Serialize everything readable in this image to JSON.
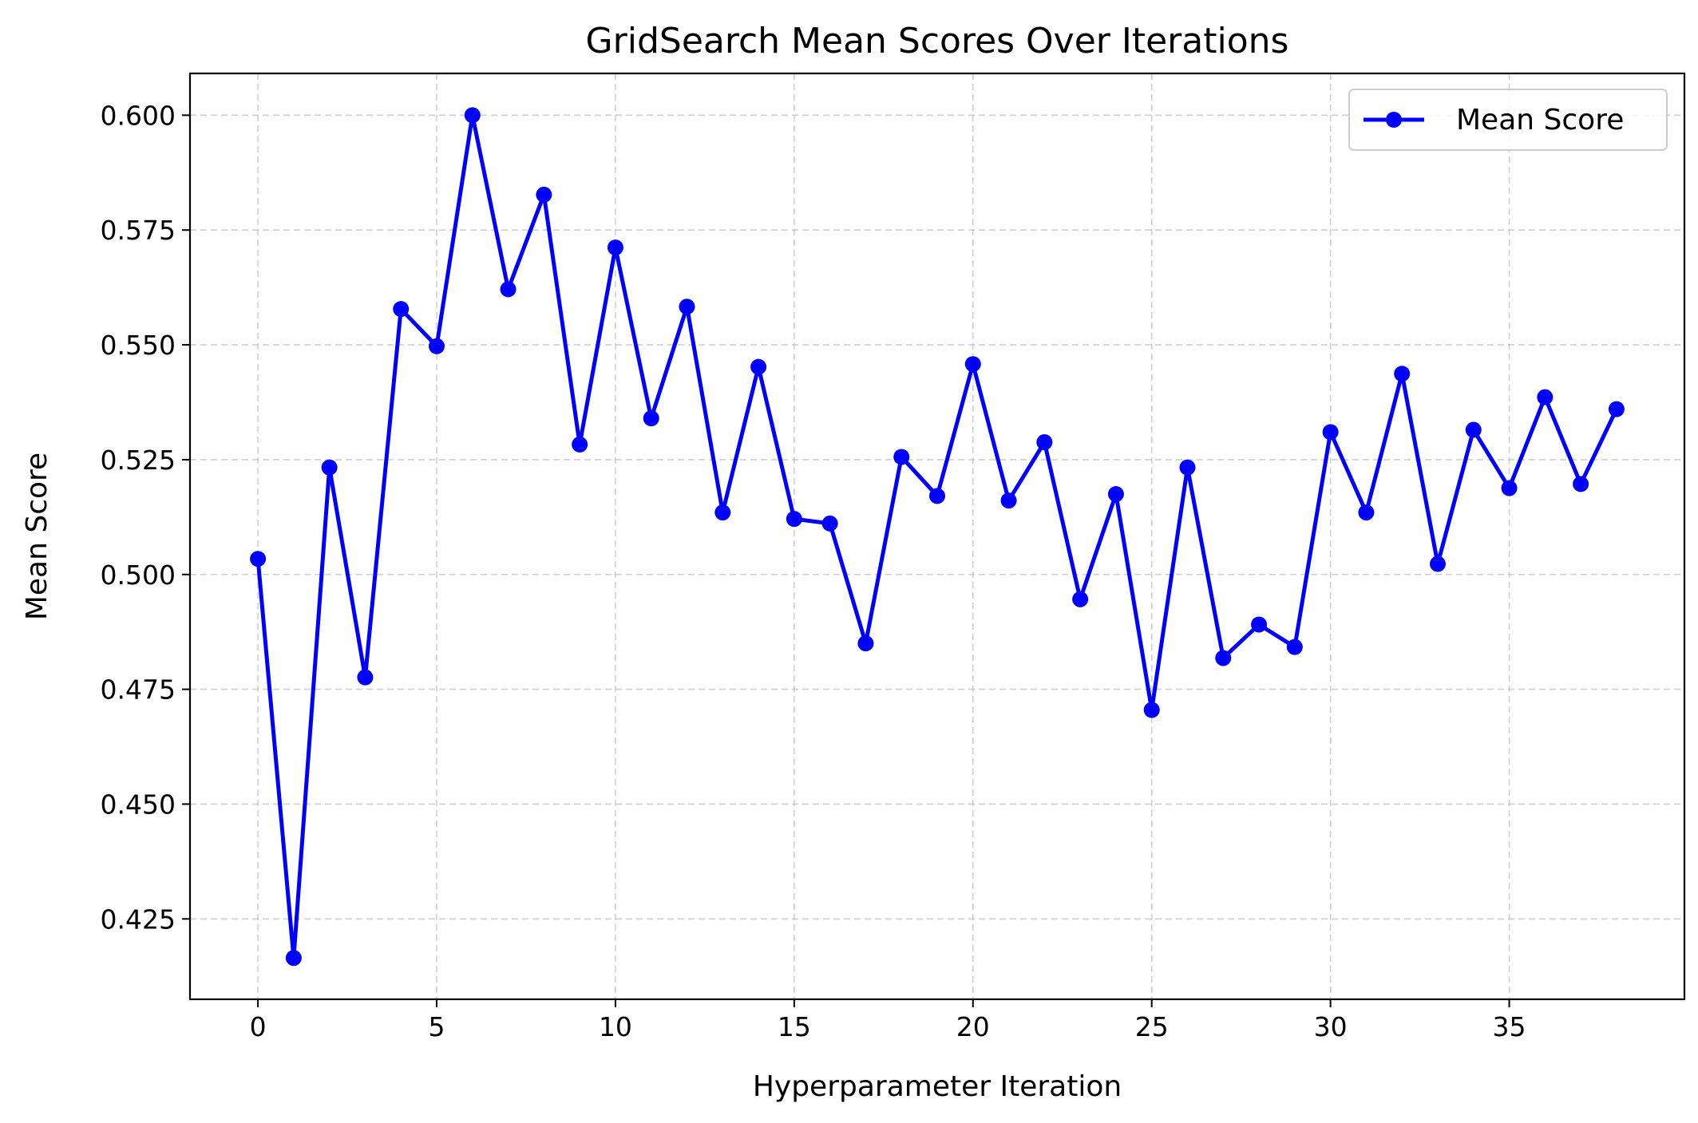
{
  "chart_data": {
    "type": "line",
    "title": "GridSearch Mean Scores Over Iterations",
    "xlabel": "Hyperparameter Iteration",
    "ylabel": "Mean Score",
    "xlim": [
      -1.9,
      39.9
    ],
    "ylim": [
      0.4075,
      0.6091
    ],
    "xticks": [
      0,
      5,
      10,
      15,
      20,
      25,
      30,
      35
    ],
    "xtick_labels": [
      "0",
      "5",
      "10",
      "15",
      "20",
      "25",
      "30",
      "35"
    ],
    "yticks": [
      0.425,
      0.45,
      0.475,
      0.5,
      0.525,
      0.55,
      0.575,
      0.6
    ],
    "ytick_labels": [
      "0.425",
      "0.450",
      "0.475",
      "0.500",
      "0.525",
      "0.550",
      "0.575",
      "0.600"
    ],
    "grid": true,
    "legend_position": "top-right",
    "series": [
      {
        "name": "Mean Score",
        "color": "#0000ff",
        "marker": "circle",
        "x": [
          0,
          1,
          2,
          3,
          4,
          5,
          6,
          7,
          8,
          9,
          10,
          11,
          12,
          13,
          14,
          15,
          16,
          17,
          18,
          19,
          20,
          21,
          22,
          23,
          24,
          25,
          26,
          27,
          28,
          29,
          30,
          31,
          32,
          33,
          34,
          35,
          36,
          37,
          38
        ],
        "values": [
          0.5034,
          0.4165,
          0.5233,
          0.4776,
          0.5578,
          0.5497,
          0.6,
          0.5621,
          0.5827,
          0.5283,
          0.5712,
          0.534,
          0.5583,
          0.5135,
          0.5452,
          0.5121,
          0.5111,
          0.485,
          0.5256,
          0.5171,
          0.5458,
          0.5161,
          0.5288,
          0.4946,
          0.5175,
          0.4705,
          0.5233,
          0.4818,
          0.4891,
          0.4842,
          0.531,
          0.5135,
          0.5437,
          0.5023,
          0.5315,
          0.5188,
          0.5386,
          0.5197,
          0.536
        ]
      }
    ]
  }
}
